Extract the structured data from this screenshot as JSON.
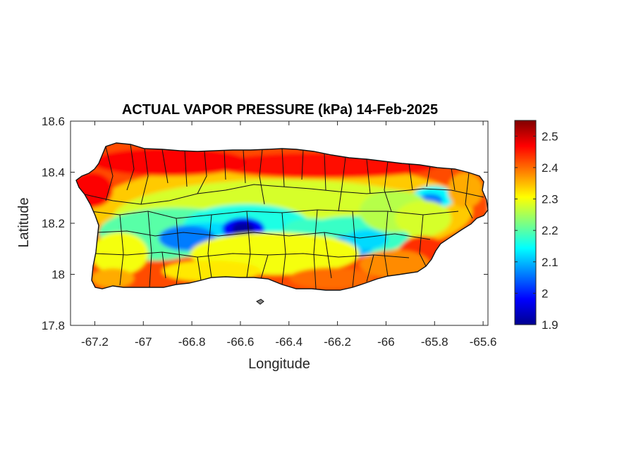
{
  "title": "ACTUAL VAPOR PRESSURE (kPa) 14-Feb-2025",
  "chart_data": {
    "type": "heatmap",
    "title": "ACTUAL VAPOR PRESSURE (kPa) 14-Feb-2025",
    "xlabel": "Longitude",
    "ylabel": "Latitude",
    "xlim": [
      -67.3,
      -65.58
    ],
    "ylim": [
      17.8,
      18.6
    ],
    "x_ticks": [
      "-67.2",
      "-67",
      "-66.8",
      "-66.6",
      "-66.4",
      "-66.2",
      "-66",
      "-65.8",
      "-65.6"
    ],
    "x_tick_values": [
      -67.2,
      -67,
      -66.8,
      -66.6,
      -66.4,
      -66.2,
      -66,
      -65.8,
      -65.6
    ],
    "y_ticks": [
      "18.6",
      "18.4",
      "18.2",
      "18",
      "17.8"
    ],
    "y_tick_values": [
      18.6,
      18.4,
      18.2,
      18.0,
      17.8
    ],
    "colorbar": {
      "colormap": "jet",
      "range": [
        1.9,
        2.55
      ],
      "ticks": [
        "2.5",
        "2.4",
        "2.3",
        "2.2",
        "2.1",
        "2",
        "1.9"
      ],
      "tick_values": [
        2.5,
        2.4,
        2.3,
        2.2,
        2.1,
        2.0,
        1.9
      ]
    },
    "region": "Puerto Rico",
    "pattern": {
      "north_coast": 2.45,
      "west_coast": 2.45,
      "southeast_coast": 2.43,
      "south_coast": 2.38,
      "central_mountains": 2.1,
      "minimum_near": [
        -66.58,
        18.17
      ],
      "minimum_value": 1.93
    },
    "grid": false
  }
}
